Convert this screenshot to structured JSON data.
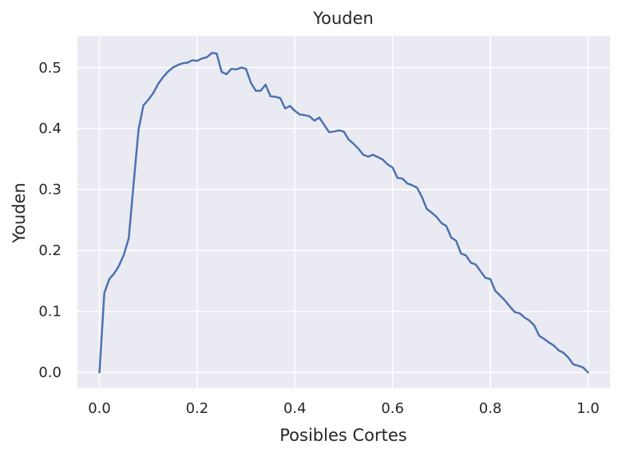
{
  "chart_data": {
    "type": "line",
    "title": "Youden",
    "xlabel": "Posibles Cortes",
    "ylabel": "Youden",
    "xlim": [
      -0.045,
      1.045
    ],
    "ylim": [
      -0.026,
      0.552
    ],
    "xticks": [
      0.0,
      0.2,
      0.4,
      0.6,
      0.8,
      1.0
    ],
    "xtick_labels": [
      "0.0",
      "0.2",
      "0.4",
      "0.6",
      "0.8",
      "1.0"
    ],
    "yticks": [
      0.0,
      0.1,
      0.2,
      0.3,
      0.4,
      0.5
    ],
    "ytick_labels": [
      "0.0",
      "0.1",
      "0.2",
      "0.3",
      "0.4",
      "0.5"
    ],
    "grid": true,
    "colors": {
      "background": "#EAEAF2",
      "grid": "#FFFFFF",
      "line": "#4C72B0",
      "text": "#262626"
    },
    "series": [
      {
        "x": [
          0.0,
          0.01,
          0.02,
          0.03,
          0.04,
          0.05,
          0.06,
          0.07,
          0.08,
          0.09,
          0.1,
          0.11,
          0.12,
          0.13,
          0.14,
          0.15,
          0.16,
          0.17,
          0.18,
          0.19,
          0.2,
          0.21,
          0.22,
          0.23,
          0.24,
          0.25,
          0.26,
          0.27,
          0.28,
          0.29,
          0.3,
          0.31,
          0.32,
          0.33,
          0.34,
          0.35,
          0.36,
          0.37,
          0.38,
          0.39,
          0.4,
          0.41,
          0.42,
          0.43,
          0.44,
          0.45,
          0.46,
          0.47,
          0.48,
          0.49,
          0.5,
          0.51,
          0.52,
          0.53,
          0.54,
          0.55,
          0.56,
          0.57,
          0.58,
          0.59,
          0.6,
          0.61,
          0.62,
          0.63,
          0.64,
          0.65,
          0.66,
          0.67,
          0.68,
          0.69,
          0.7,
          0.71,
          0.72,
          0.73,
          0.74,
          0.75,
          0.76,
          0.77,
          0.78,
          0.79,
          0.8,
          0.81,
          0.82,
          0.83,
          0.84,
          0.85,
          0.86,
          0.87,
          0.88,
          0.89,
          0.9,
          0.91,
          0.92,
          0.93,
          0.94,
          0.95,
          0.96,
          0.97,
          0.98,
          0.99,
          1.0
        ],
        "values": [
          0.0,
          0.13,
          0.153,
          0.162,
          0.175,
          0.193,
          0.22,
          0.31,
          0.398,
          0.438,
          0.447,
          0.458,
          0.473,
          0.484,
          0.493,
          0.5,
          0.504,
          0.507,
          0.508,
          0.512,
          0.511,
          0.515,
          0.517,
          0.524,
          0.523,
          0.493,
          0.489,
          0.498,
          0.497,
          0.5,
          0.498,
          0.475,
          0.462,
          0.462,
          0.472,
          0.453,
          0.452,
          0.45,
          0.433,
          0.437,
          0.429,
          0.423,
          0.422,
          0.42,
          0.413,
          0.418,
          0.406,
          0.394,
          0.395,
          0.397,
          0.395,
          0.382,
          0.375,
          0.367,
          0.357,
          0.354,
          0.357,
          0.353,
          0.349,
          0.341,
          0.336,
          0.319,
          0.318,
          0.31,
          0.307,
          0.303,
          0.288,
          0.268,
          0.262,
          0.255,
          0.245,
          0.24,
          0.221,
          0.216,
          0.195,
          0.192,
          0.18,
          0.177,
          0.166,
          0.155,
          0.153,
          0.134,
          0.126,
          0.118,
          0.108,
          0.099,
          0.097,
          0.09,
          0.085,
          0.077,
          0.06,
          0.055,
          0.049,
          0.044,
          0.036,
          0.032,
          0.024,
          0.013,
          0.011,
          0.008,
          0.0
        ]
      }
    ]
  }
}
